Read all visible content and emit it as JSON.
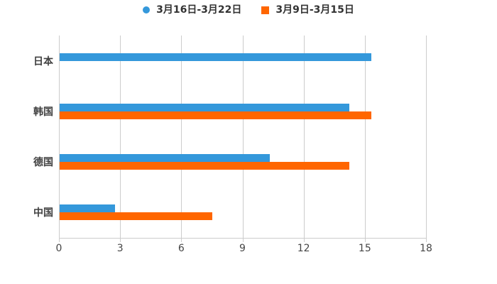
{
  "chart_data": {
    "type": "bar",
    "orientation": "horizontal",
    "title": "",
    "categories": [
      "日本",
      "韩国",
      "德国",
      "中国"
    ],
    "series": [
      {
        "name": "3月16日-3月22日",
        "color": "#3498db",
        "marker": "circle",
        "values": [
          15.3,
          14.2,
          10.3,
          2.7
        ]
      },
      {
        "name": "3月9日-3月15日",
        "color": "#ff6600",
        "marker": "square",
        "values": [
          0,
          15.3,
          14.2,
          7.5
        ]
      }
    ],
    "xlim": [
      0,
      18
    ],
    "xticks": [
      0,
      3,
      6,
      9,
      12,
      15,
      18
    ],
    "grid": true,
    "legend_position": "top"
  },
  "colors": {
    "grid": "#cccccc",
    "axis": "#cccccc",
    "axis_text": "#454545",
    "category_text": "#404040",
    "legend_text": "#333333",
    "background": "#ffffff"
  }
}
